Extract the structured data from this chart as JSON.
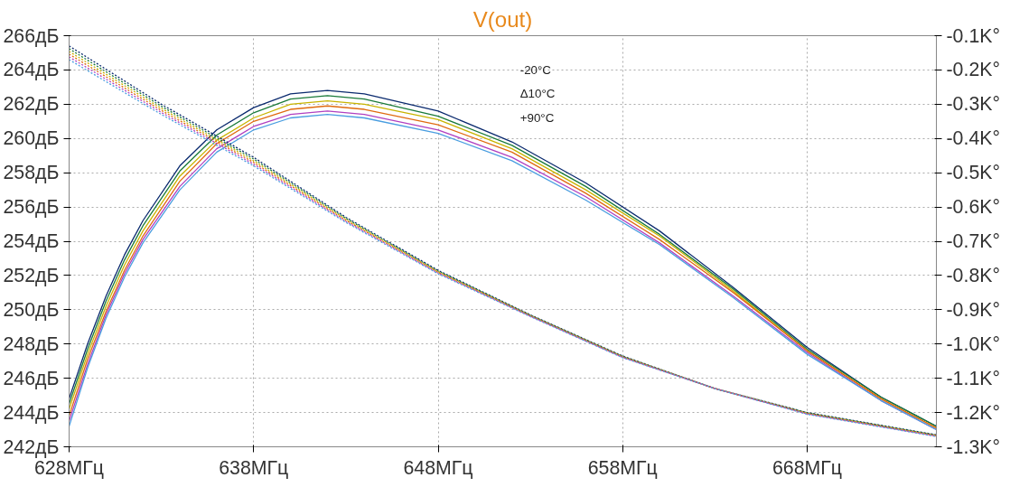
{
  "chart_data": {
    "type": "line",
    "title": "V(out)",
    "xlim": [
      628,
      675
    ],
    "ylim": [
      242,
      266
    ],
    "y2lim": [
      -1.3,
      -0.1
    ],
    "xticks": [
      {
        "value": 628,
        "label": "628МГц"
      },
      {
        "value": 638,
        "label": "638МГц"
      },
      {
        "value": 648,
        "label": "648МГц"
      },
      {
        "value": 658,
        "label": "658МГц"
      },
      {
        "value": 668,
        "label": "668МГц"
      }
    ],
    "yticks": [
      {
        "value": 242,
        "label": "242дБ"
      },
      {
        "value": 244,
        "label": "244дБ"
      },
      {
        "value": 246,
        "label": "246дБ"
      },
      {
        "value": 248,
        "label": "248дБ"
      },
      {
        "value": 250,
        "label": "250дБ"
      },
      {
        "value": 252,
        "label": "252дБ"
      },
      {
        "value": 254,
        "label": "254дБ"
      },
      {
        "value": 256,
        "label": "256дБ"
      },
      {
        "value": 258,
        "label": "258дБ"
      },
      {
        "value": 260,
        "label": "260дБ"
      },
      {
        "value": 262,
        "label": "262дБ"
      },
      {
        "value": 264,
        "label": "264дБ"
      },
      {
        "value": 266,
        "label": "266дБ"
      }
    ],
    "y2ticks": [
      {
        "value": -0.1,
        "label": "-0.1K°"
      },
      {
        "value": -0.2,
        "label": "-0.2K°"
      },
      {
        "value": -0.3,
        "label": "-0.3K°"
      },
      {
        "value": -0.4,
        "label": "-0.4K°"
      },
      {
        "value": -0.5,
        "label": "-0.5K°"
      },
      {
        "value": -0.6,
        "label": "-0.6K°"
      },
      {
        "value": -0.7,
        "label": "-0.7K°"
      },
      {
        "value": -0.8,
        "label": "-0.8K°"
      },
      {
        "value": -0.9,
        "label": "-0.9K°"
      },
      {
        "value": -1.0,
        "label": "-1.0K°"
      },
      {
        "value": -1.1,
        "label": "-1.1K°"
      },
      {
        "value": -1.2,
        "label": "-1.2K°"
      },
      {
        "value": -1.3,
        "label": "-1.3K°"
      }
    ],
    "grid": true,
    "marker": "none",
    "annotations": [
      "-20°C",
      "Δ10°C",
      "+90°C"
    ],
    "x": [
      628,
      629,
      630,
      631,
      632,
      634,
      636,
      638,
      640,
      642,
      644,
      648,
      652,
      656,
      660,
      664,
      668,
      672,
      675
    ],
    "series": [
      {
        "color": "#0a2a6e",
        "line_style": "solid",
        "values": [
          244.8,
          248,
          250.8,
          253.2,
          255.2,
          258.4,
          260.5,
          261.8,
          262.6,
          262.8,
          262.6,
          261.6,
          259.8,
          257.4,
          254.6,
          251.3,
          247.8,
          244.9,
          243.2
        ]
      },
      {
        "color": "#1a7a3a",
        "line_style": "solid",
        "values": [
          244.5,
          247.7,
          250.5,
          252.9,
          254.9,
          258.1,
          260.2,
          261.5,
          262.3,
          262.5,
          262.3,
          261.3,
          259.6,
          257.2,
          254.4,
          251.2,
          247.7,
          244.9,
          243.2
        ]
      },
      {
        "color": "#c8b400",
        "line_style": "solid",
        "values": [
          244.2,
          247.4,
          250.2,
          252.6,
          254.6,
          257.8,
          259.9,
          261.2,
          262.0,
          262.2,
          262.0,
          261.1,
          259.4,
          257.0,
          254.3,
          251.1,
          247.6,
          244.8,
          243.1
        ]
      },
      {
        "color": "#e06a10",
        "line_style": "solid",
        "values": [
          243.8,
          247.1,
          249.9,
          252.3,
          254.3,
          257.5,
          259.7,
          261.0,
          261.7,
          261.9,
          261.7,
          260.8,
          259.2,
          256.8,
          254.1,
          251.0,
          247.6,
          244.8,
          243.1
        ]
      },
      {
        "color": "#b040c0",
        "line_style": "solid",
        "values": [
          243.5,
          246.8,
          249.7,
          252.1,
          254.1,
          257.2,
          259.4,
          260.7,
          261.4,
          261.6,
          261.4,
          260.5,
          258.9,
          256.6,
          253.9,
          250.8,
          247.5,
          244.7,
          243.0
        ]
      },
      {
        "color": "#4a9ee0",
        "line_style": "solid",
        "values": [
          243.2,
          246.6,
          249.5,
          251.9,
          253.9,
          257,
          259.2,
          260.5,
          261.2,
          261.4,
          261.2,
          260.3,
          258.7,
          256.4,
          253.8,
          250.7,
          247.4,
          244.7,
          243.0
        ]
      },
      {
        "color": "#0a2a6e",
        "line_style": "dotted",
        "axis": "y2",
        "x": [
          628,
          633,
          638,
          643,
          648,
          653,
          658,
          663,
          668,
          675
        ],
        "values": [
          -0.13,
          -0.3,
          -0.455,
          -0.63,
          -0.785,
          -0.915,
          -1.035,
          -1.13,
          -1.2,
          -1.265
        ]
      },
      {
        "color": "#1a7a3a",
        "line_style": "dotted",
        "axis": "y2",
        "x": [
          628,
          633,
          638,
          643,
          648,
          653,
          658,
          663,
          668,
          675
        ],
        "values": [
          -0.138,
          -0.306,
          -0.46,
          -0.633,
          -0.787,
          -0.916,
          -1.036,
          -1.13,
          -1.201,
          -1.266
        ]
      },
      {
        "color": "#c8b400",
        "line_style": "dotted",
        "axis": "y2",
        "x": [
          628,
          633,
          638,
          643,
          648,
          653,
          658,
          663,
          668,
          675
        ],
        "values": [
          -0.146,
          -0.312,
          -0.465,
          -0.636,
          -0.789,
          -0.917,
          -1.037,
          -1.13,
          -1.202,
          -1.267
        ]
      },
      {
        "color": "#e06a10",
        "line_style": "dotted",
        "axis": "y2",
        "x": [
          628,
          633,
          638,
          643,
          648,
          653,
          658,
          663,
          668,
          675
        ],
        "values": [
          -0.154,
          -0.318,
          -0.47,
          -0.639,
          -0.791,
          -0.918,
          -1.038,
          -1.13,
          -1.203,
          -1.268
        ]
      },
      {
        "color": "#b040c0",
        "line_style": "dotted",
        "axis": "y2",
        "x": [
          628,
          633,
          638,
          643,
          648,
          653,
          658,
          663,
          668,
          675
        ],
        "values": [
          -0.162,
          -0.324,
          -0.475,
          -0.642,
          -0.793,
          -0.919,
          -1.039,
          -1.13,
          -1.204,
          -1.269
        ]
      },
      {
        "color": "#4a9ee0",
        "line_style": "dotted",
        "axis": "y2",
        "x": [
          628,
          633,
          638,
          643,
          648,
          653,
          658,
          663,
          668,
          675
        ],
        "values": [
          -0.17,
          -0.33,
          -0.48,
          -0.645,
          -0.795,
          -0.92,
          -1.04,
          -1.13,
          -1.205,
          -1.27
        ]
      }
    ]
  }
}
